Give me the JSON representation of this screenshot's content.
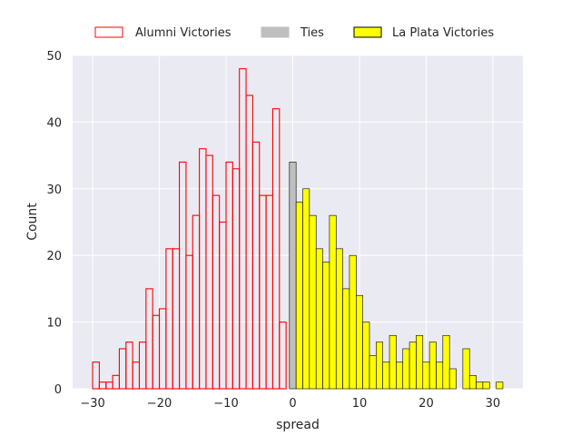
{
  "chart_data": {
    "type": "bar",
    "subtype": "histogram",
    "xlabel": "spread",
    "ylabel": "Count",
    "xlim": [
      -33,
      34.5
    ],
    "ylim": [
      0,
      50
    ],
    "xticks": [
      -30,
      -20,
      -10,
      0,
      10,
      20,
      30
    ],
    "yticks": [
      0,
      10,
      20,
      30,
      40,
      50
    ],
    "xtick_labels": [
      "−30",
      "−20",
      "−10",
      "0",
      "10",
      "20",
      "30"
    ],
    "ytick_labels": [
      "0",
      "10",
      "20",
      "30",
      "40",
      "50"
    ],
    "grid": true,
    "bin_width": 1,
    "legend": {
      "placement": "top-center-outside",
      "entries": [
        {
          "label": "Alumni Victories",
          "style": "outline",
          "color": "#ff0000"
        },
        {
          "label": "Ties",
          "style": "filled",
          "color": "#bfbfbf"
        },
        {
          "label": "La Plata Victories",
          "style": "filled",
          "color": "#ffff00"
        }
      ]
    },
    "colors": {
      "background": "#eaeaf2",
      "grid": "#ffffff",
      "alumni_edge": "#ff0000",
      "ties_fill": "#bfbfbf",
      "la_plata_fill": "#ffff00",
      "filled_edge": "#000000"
    },
    "series": [
      {
        "name": "Alumni Victories",
        "style": "outline",
        "bin_starts": [
          -30,
          -29,
          -28,
          -27,
          -26,
          -25,
          -24,
          -23,
          -22,
          -21,
          -20,
          -19,
          -18,
          -17,
          -16,
          -15,
          -14,
          -13,
          -12,
          -11,
          -10,
          -9,
          -8,
          -7,
          -6,
          -5,
          -4,
          -3,
          -2,
          -1
        ],
        "values": [
          4,
          1,
          1,
          2,
          6,
          7,
          4,
          7,
          15,
          11,
          12,
          21,
          21,
          34,
          20,
          26,
          36,
          35,
          29,
          25,
          34,
          33,
          48,
          44,
          37,
          29,
          29,
          42,
          10,
          0
        ]
      },
      {
        "name": "Ties",
        "style": "filled",
        "bin_starts": [
          -0.5
        ],
        "values": [
          34
        ]
      },
      {
        "name": "La Plata Victories",
        "style": "filled",
        "bin_starts": [
          0.5,
          1.5,
          2.5,
          3.5,
          4.5,
          5.5,
          6.5,
          7.5,
          8.5,
          9.5,
          10.5,
          11.5,
          12.5,
          13.5,
          14.5,
          15.5,
          16.5,
          17.5,
          18.5,
          19.5,
          20.5,
          21.5,
          22.5,
          23.5,
          24.5,
          25.5,
          26.5,
          27.5,
          28.5,
          29.5,
          30.5
        ],
        "values": [
          28,
          30,
          26,
          21,
          19,
          26,
          21,
          15,
          20,
          14,
          10,
          5,
          7,
          4,
          8,
          4,
          6,
          7,
          8,
          4,
          7,
          4,
          8,
          3,
          0,
          6,
          2,
          1,
          1,
          0,
          1
        ]
      }
    ]
  }
}
